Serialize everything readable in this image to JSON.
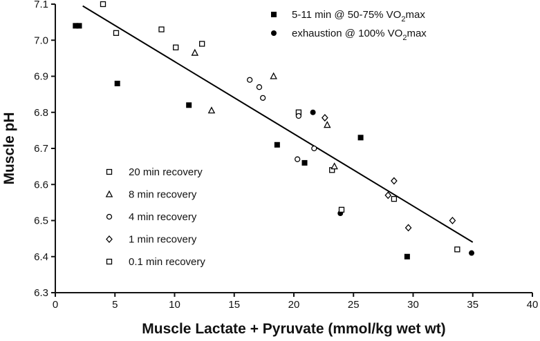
{
  "chart_data": {
    "type": "scatter",
    "title": "",
    "xlabel": "Muscle Lactate + Pyruvate (mmol/kg wet wt)",
    "ylabel": "Muscle pH",
    "xlim": [
      0,
      40
    ],
    "ylim": [
      6.3,
      7.1
    ],
    "xticks": [
      "0",
      "5",
      "10",
      "15",
      "20",
      "25",
      "30",
      "35",
      "40"
    ],
    "yticks": [
      "6.3",
      "6.4",
      "6.5",
      "6.6",
      "6.7",
      "6.8",
      "6.9",
      "7.0",
      "7.1"
    ],
    "grid": false,
    "series": [
      {
        "name": "5-11 min @ 50-75% VO2max",
        "label_main": "5-11 min @ 50-75% VO",
        "label_sub": "2",
        "label_tail": "max",
        "marker": "filled-square",
        "legend_group": "top",
        "points": [
          [
            1.7,
            7.04
          ],
          [
            2.0,
            7.04
          ],
          [
            5.2,
            6.88
          ],
          [
            11.2,
            6.82
          ],
          [
            18.6,
            6.71
          ],
          [
            20.9,
            6.66
          ],
          [
            25.6,
            6.73
          ],
          [
            29.5,
            6.4
          ]
        ]
      },
      {
        "name": "exhaustion @ 100% VO2max",
        "label_main": "exhaustion @ 100% VO",
        "label_sub": "2",
        "label_tail": "max",
        "marker": "filled-circle",
        "legend_group": "top",
        "points": [
          [
            21.6,
            6.8
          ],
          [
            23.9,
            6.52
          ],
          [
            34.9,
            6.41
          ]
        ]
      },
      {
        "name": "20 min recovery",
        "marker": "open-square",
        "legend_group": "bottom",
        "points": [
          [
            4.0,
            7.1
          ],
          [
            5.1,
            7.02
          ],
          [
            8.9,
            7.03
          ],
          [
            10.1,
            6.98
          ],
          [
            12.3,
            6.99
          ],
          [
            20.4,
            6.8
          ],
          [
            23.2,
            6.64
          ],
          [
            24.0,
            6.53
          ],
          [
            28.4,
            6.56
          ],
          [
            33.7,
            6.42
          ]
        ]
      },
      {
        "name": "8 min recovery",
        "marker": "open-triangle",
        "legend_group": "bottom",
        "points": [
          [
            11.7,
            6.965
          ],
          [
            13.1,
            6.805
          ],
          [
            18.3,
            6.9
          ],
          [
            22.8,
            6.765
          ],
          [
            23.4,
            6.65
          ]
        ]
      },
      {
        "name": "4 min recovery",
        "marker": "open-circle",
        "legend_group": "bottom",
        "points": [
          [
            16.3,
            6.89
          ],
          [
            17.1,
            6.87
          ],
          [
            17.4,
            6.84
          ],
          [
            20.4,
            6.79
          ],
          [
            20.3,
            6.67
          ],
          [
            21.7,
            6.7
          ]
        ]
      },
      {
        "name": "1 min recovery",
        "marker": "open-diamond",
        "legend_group": "bottom",
        "points": [
          [
            22.6,
            6.785
          ],
          [
            28.4,
            6.61
          ],
          [
            29.6,
            6.48
          ],
          [
            33.3,
            6.5
          ],
          [
            27.9,
            6.57
          ]
        ]
      },
      {
        "name": "0.1 min recovery",
        "marker": "open-square-small",
        "legend_group": "bottom",
        "points": []
      }
    ],
    "trendline": {
      "x": [
        2.3,
        35.0
      ],
      "y": [
        7.095,
        6.44
      ]
    }
  }
}
